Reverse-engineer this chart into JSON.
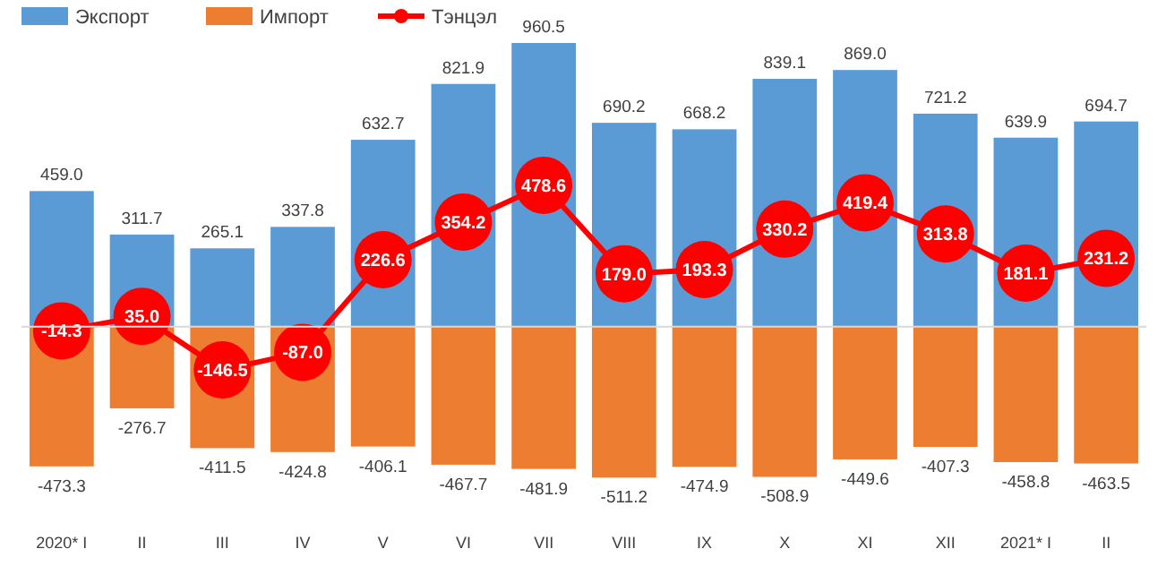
{
  "chart_data": {
    "type": "bar",
    "categories": [
      "2020* I",
      "II",
      "III",
      "IV",
      "V",
      "VI",
      "VII",
      "VIII",
      "IX",
      "X",
      "XI",
      "XII",
      "2021* I",
      "II"
    ],
    "series": [
      {
        "name": "Экспорт",
        "color": "#5b9bd5",
        "values": [
          459.0,
          311.7,
          265.1,
          337.8,
          632.7,
          821.9,
          960.5,
          690.2,
          668.2,
          839.1,
          869.0,
          721.2,
          639.9,
          694.7
        ],
        "value_labels": [
          "459.0",
          "311.7",
          "265.1",
          "337.8",
          "632.7",
          "821.9",
          "960.5",
          "690.2",
          "668.2",
          "839.1",
          "869.0",
          "721.2",
          "639.9",
          "694.7"
        ]
      },
      {
        "name": "Импорт",
        "color": "#ed7d31",
        "values": [
          -473.3,
          -276.7,
          -411.5,
          -424.8,
          -406.1,
          -467.7,
          -481.9,
          -511.2,
          -474.9,
          -508.9,
          -449.6,
          -407.3,
          -458.8,
          -463.5
        ],
        "value_labels": [
          "-473.3",
          "-276.7",
          "-411.5",
          "-424.8",
          "-406.1",
          "-467.7",
          "-481.9",
          "-511.2",
          "-474.9",
          "-508.9",
          "-449.6",
          "-407.3",
          "-458.8",
          "-463.5"
        ]
      },
      {
        "name": "Тэнцэл",
        "color": "#ff0000",
        "type": "line",
        "marker": "circle",
        "values": [
          -14.3,
          35.0,
          -146.5,
          -87.0,
          226.6,
          354.2,
          478.6,
          179.0,
          193.3,
          330.2,
          419.4,
          313.8,
          181.1,
          231.2
        ],
        "value_labels": [
          "-14.3",
          "35.0",
          "-146.5",
          "-87.0",
          "226.6",
          "354.2",
          "478.6",
          "179.0",
          "193.3",
          "330.2",
          "419.4",
          "313.8",
          "181.1",
          "231.2"
        ]
      }
    ],
    "stacked": true,
    "legend": "top left"
  }
}
